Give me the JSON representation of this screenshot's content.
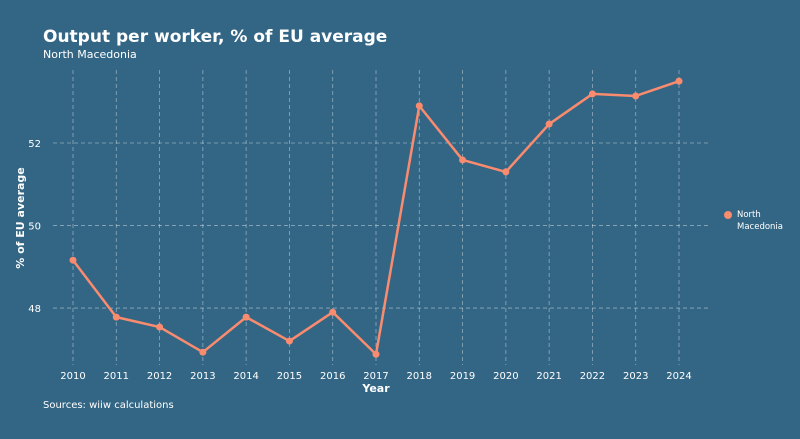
{
  "chart_data": {
    "type": "line",
    "title": "Output per worker, % of EU average",
    "subtitle": "North Macedonia",
    "xlabel": "Year",
    "ylabel": "% of EU average",
    "source": "Sources: wiiw calculations",
    "x": [
      2010,
      2011,
      2012,
      2013,
      2014,
      2015,
      2016,
      2017,
      2018,
      2019,
      2020,
      2021,
      2022,
      2023,
      2024
    ],
    "series": [
      {
        "name": "North Macedonia",
        "color": "#f98b6f",
        "values": [
          49.16,
          47.78,
          47.54,
          46.93,
          47.78,
          47.2,
          47.9,
          46.88,
          52.9,
          51.59,
          51.3,
          52.46,
          53.19,
          53.14,
          53.5
        ]
      }
    ],
    "yticks": [
      48,
      50,
      52
    ],
    "ylim": [
      46.62,
      53.77
    ],
    "xlim": [
      2009.3,
      2024.7
    ],
    "grid": true,
    "legend_position": "right"
  }
}
